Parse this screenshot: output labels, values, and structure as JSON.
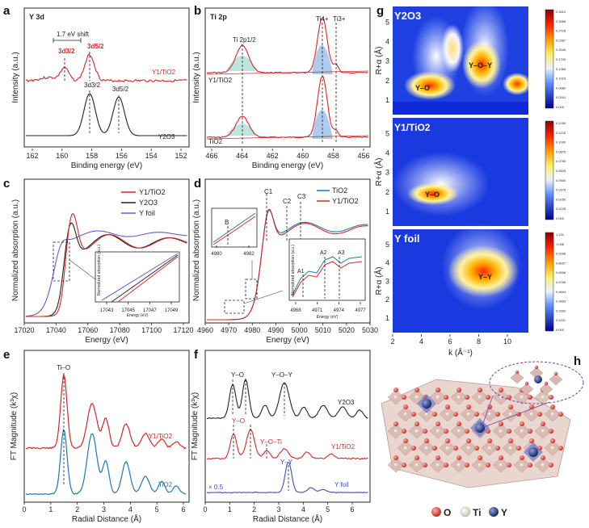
{
  "figure": {
    "panel_letters": [
      "a",
      "b",
      "c",
      "d",
      "e",
      "f",
      "g",
      "h"
    ]
  },
  "chart_data": [
    {
      "id": "a",
      "type": "line",
      "title": "Y 3d",
      "xlabel": "Binding energy (eV)",
      "ylabel": "Intensity (a.u.)",
      "xlim": [
        162,
        152
      ],
      "xticks": [
        "162",
        "160",
        "158",
        "156",
        "154",
        "152"
      ],
      "annotations": [
        "1.7 eV shift",
        "3d3/2",
        "3d5/2",
        "3d3/2",
        "3d5/2"
      ],
      "series": [
        {
          "name": "Y1/TiO2",
          "color": "#d62728"
        },
        {
          "name": "Y2O3",
          "color": "#222222"
        }
      ]
    },
    {
      "id": "b",
      "type": "line",
      "title": "Ti 2p",
      "xlabel": "Binding energy (eV)",
      "ylabel": "Intensity (a.u.)",
      "xlim": [
        466,
        456
      ],
      "xticks": [
        "466",
        "464",
        "462",
        "460",
        "458",
        "456"
      ],
      "annotations": [
        "Ti 2p1/2",
        "Ti4+",
        "Ti3+"
      ],
      "series": [
        {
          "name": "Y1/TiO2",
          "color": "#d62728"
        },
        {
          "name": "TiO2",
          "color": "#d62728"
        }
      ]
    },
    {
      "id": "c",
      "type": "line",
      "xlabel": "Energy (eV)",
      "ylabel": "Normalized absorption (a.u.)",
      "xlim": [
        17020,
        17125
      ],
      "xticks": [
        "17020",
        "17040",
        "17060",
        "17080",
        "17100",
        "17120"
      ],
      "inset": {
        "xlabel": "Energy (eV)",
        "ylabel": "Normalized absorption (a.u.)",
        "xticks": [
          "17043",
          "17045",
          "17047",
          "17049"
        ]
      },
      "series": [
        {
          "name": "Y1/TiO2",
          "color": "#d62728"
        },
        {
          "name": "Y2O3",
          "color": "#222222"
        },
        {
          "name": "Y foil",
          "color": "#6a5acd"
        }
      ]
    },
    {
      "id": "d",
      "type": "line",
      "xlabel": "Energy (eV)",
      "ylabel": "Normalized absorption (a.u.)",
      "xlim": [
        4960,
        5030
      ],
      "xticks": [
        "4960",
        "4970",
        "4980",
        "4990",
        "5000",
        "5010",
        "5020",
        "5030"
      ],
      "annotations": [
        "B",
        "C1",
        "C2",
        "C3",
        "A1",
        "A2",
        "A3"
      ],
      "inset1": {
        "xticks": [
          "4980",
          "4982"
        ],
        "label": "B"
      },
      "inset2": {
        "xlabel": "Energy (eV)",
        "ylabel": "Normalized absorption (a.u.)",
        "xticks": [
          "4968",
          "4971",
          "4974",
          "4977"
        ]
      },
      "series": [
        {
          "name": "TiO2",
          "color": "#1f77b4"
        },
        {
          "name": "Y1/TiO2",
          "color": "#d62728"
        }
      ]
    },
    {
      "id": "e",
      "type": "line",
      "xlabel": "Radial Distance (Å)",
      "ylabel": "FT Magnitude (k³χ)",
      "xlim": [
        0,
        6
      ],
      "xticks": [
        "0",
        "1",
        "2",
        "3",
        "4",
        "5",
        "6"
      ],
      "annotations": [
        "Ti–O"
      ],
      "series": [
        {
          "name": "Y1/TiO2",
          "color": "#d62728"
        },
        {
          "name": "TiO2",
          "color": "#1f77b4"
        }
      ]
    },
    {
      "id": "f",
      "type": "line",
      "xlabel": "Radial Distance (Å)",
      "ylabel": "FT Magnitude (k³χ)",
      "xlim": [
        0,
        6
      ],
      "xticks": [
        "0",
        "1",
        "2",
        "3",
        "4",
        "5",
        "6"
      ],
      "annotations": [
        "Y–O",
        "Y–O–Y",
        "Y–O",
        "Y–O–Ti",
        "Y–Y",
        "× 0.5"
      ],
      "series": [
        {
          "name": "Y2O3",
          "color": "#222222"
        },
        {
          "name": "Y1/TiO2",
          "color": "#d62728"
        },
        {
          "name": "Y foil",
          "color": "#3b4cc0"
        }
      ]
    },
    {
      "id": "g",
      "type": "heatmap",
      "xlabel": "k (Å⁻¹)",
      "ylabel": "R+α (Å)",
      "xticks": [
        "2",
        "4",
        "6",
        "8",
        "10"
      ],
      "yticks": [
        "1",
        "2",
        "3",
        "4",
        "5"
      ],
      "panels": [
        {
          "name": "Y2O3",
          "labels": [
            "Y–O",
            "Y–O–Y"
          ],
          "colorbar": [
            "0.3410",
            "0.3069",
            "0.2728",
            "0.2387",
            "0.2046",
            "0.1705",
            "0.1364",
            "0.1023",
            "0.0682",
            "0.0341",
            "0.000"
          ]
        },
        {
          "name": "Y1/TiO2",
          "labels": [
            "Y–O"
          ],
          "colorbar": [
            "0.1250",
            "0.1125",
            "0.1000",
            "0.0875",
            "0.0750",
            "0.0625",
            "0.0500",
            "0.0375",
            "0.0250",
            "0.0125",
            "0.000"
          ]
        },
        {
          "name": "Y foil",
          "labels": [
            "Y–Y"
          ],
          "colorbar": [
            "1.151",
            "1.036",
            "0.9208",
            "0.8057",
            "0.6906",
            "0.5755",
            "0.4604",
            "0.3453",
            "0.2302",
            "0.1151",
            "0.000"
          ]
        }
      ]
    },
    {
      "id": "h",
      "type": "diagram",
      "legend": [
        "O",
        "Ti",
        "Y"
      ]
    }
  ]
}
